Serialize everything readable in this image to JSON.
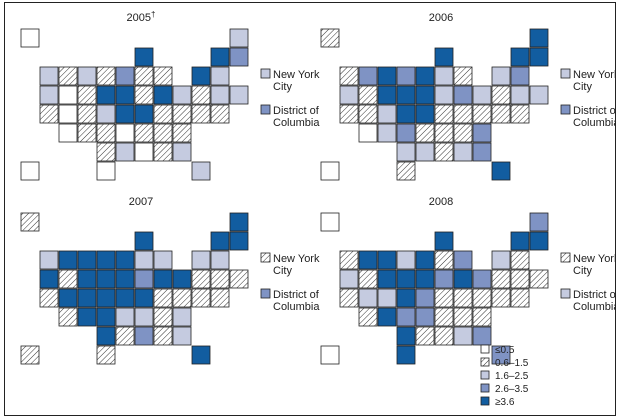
{
  "colors": {
    "c0": "#ffffff",
    "c1": "hatch",
    "c2": "#c5cbe0",
    "c3": "#7f93c4",
    "c4": "#125da0",
    "outline": "#222222"
  },
  "legend": {
    "items": [
      {
        "label": "≤0.5",
        "category": 0
      },
      {
        "label": "0.6–1.5",
        "category": 1
      },
      {
        "label": "1.6–2.5",
        "category": 2
      },
      {
        "label": "2.6–3.5",
        "category": 3
      },
      {
        "label": "≥3.6",
        "category": 4
      }
    ]
  },
  "panels": [
    {
      "title": "2005",
      "title_mark": "†",
      "nyc_label": "New York City",
      "nyc_line1": "New York",
      "nyc_line2": "City",
      "dc_line1": "District of",
      "dc_line2": "Columbia",
      "nyc": 2,
      "dc": 3,
      "states": {
        "WA": 2,
        "OR": 2,
        "CA": 1,
        "NV": 0,
        "ID": 1,
        "MT": 2,
        "WY": 1,
        "UT": 0,
        "AZ": 0,
        "CO": 1,
        "NM": 1,
        "ND": 1,
        "SD": 4,
        "NE": 2,
        "KS": 1,
        "OK": 1,
        "TX": 0,
        "MN": 3,
        "IA": 4,
        "MO": 4,
        "AR": 0,
        "LA": 2,
        "WI": 4,
        "IL": 1,
        "MI": 1,
        "IN": 1,
        "OH": 4,
        "KY": 4,
        "TN": 1,
        "MS": 0,
        "AL": 1,
        "GA": 2,
        "FL": 2,
        "SC": 1,
        "NC": 1,
        "VA": 1,
        "WV": 1,
        "PA": 2,
        "NY": 4,
        "VT": 4,
        "NH": 3,
        "ME": 2,
        "MA": 2,
        "CT": 2,
        "RI": 2,
        "NJ": 1,
        "DE": 1,
        "MD": 1,
        "AK": 0,
        "HI": 0
      }
    },
    {
      "title": "2006",
      "title_mark": "",
      "nyc_line1": "New York",
      "nyc_line2": "City",
      "dc_line1": "District of",
      "dc_line2": "Columbia",
      "nyc": 2,
      "dc": 3,
      "states": {
        "WA": 1,
        "OR": 2,
        "CA": 1,
        "NV": 1,
        "ID": 3,
        "MT": 4,
        "WY": 4,
        "UT": 1,
        "AZ": 0,
        "CO": 2,
        "NM": 2,
        "ND": 3,
        "SD": 4,
        "NE": 4,
        "KS": 3,
        "OK": 2,
        "TX": 1,
        "MN": 4,
        "IA": 4,
        "MO": 4,
        "AR": 1,
        "LA": 2,
        "WI": 4,
        "IL": 2,
        "MI": 1,
        "IN": 2,
        "OH": 3,
        "KY": 1,
        "TN": 1,
        "MS": 1,
        "AL": 2,
        "GA": 3,
        "FL": 4,
        "SC": 3,
        "NC": 1,
        "VA": 1,
        "WV": 1,
        "PA": 2,
        "NY": 2,
        "VT": 4,
        "NH": 4,
        "ME": 4,
        "MA": 3,
        "CT": 2,
        "RI": 2,
        "NJ": 1,
        "DE": 1,
        "MD": 1,
        "AK": 1,
        "HI": 0
      }
    },
    {
      "title": "2007",
      "title_mark": "",
      "nyc_line1": "New York",
      "nyc_line2": "City",
      "dc_line1": "District of",
      "dc_line2": "Columbia",
      "nyc": 1,
      "dc": 3,
      "states": {
        "WA": 2,
        "OR": 4,
        "CA": 1,
        "NV": 1,
        "ID": 4,
        "MT": 4,
        "WY": 4,
        "UT": 4,
        "AZ": 1,
        "CO": 4,
        "NM": 4,
        "ND": 4,
        "SD": 4,
        "NE": 4,
        "KS": 4,
        "OK": 4,
        "TX": 1,
        "MN": 4,
        "IA": 4,
        "MO": 4,
        "AR": 2,
        "LA": 1,
        "WI": 4,
        "IL": 2,
        "MI": 2,
        "IN": 3,
        "OH": 4,
        "KY": 4,
        "TN": 2,
        "MS": 3,
        "AL": 1,
        "GA": 2,
        "FL": 4,
        "SC": 2,
        "NC": 1,
        "VA": 1,
        "WV": 1,
        "PA": 4,
        "NY": 2,
        "VT": 4,
        "NH": 4,
        "ME": 4,
        "MA": 2,
        "CT": 1,
        "RI": 1,
        "NJ": 1,
        "DE": 1,
        "MD": 1,
        "AK": 1,
        "HI": 1
      }
    },
    {
      "title": "2008",
      "title_mark": "",
      "nyc_line1": "New York",
      "nyc_line2": "City",
      "dc_line1": "District of",
      "dc_line2": "Columbia",
      "nyc": 1,
      "dc": 2,
      "states": {
        "WA": 1,
        "OR": 2,
        "CA": 1,
        "NV": 1,
        "ID": 4,
        "MT": 4,
        "WY": 4,
        "UT": 2,
        "AZ": 1,
        "CO": 2,
        "NM": 4,
        "ND": 2,
        "SD": 4,
        "NE": 4,
        "KS": 3,
        "OK": 4,
        "TX": 4,
        "MN": 4,
        "IA": 4,
        "MO": 3,
        "AR": 3,
        "LA": 1,
        "WI": 4,
        "IL": 1,
        "MI": 3,
        "IN": 3,
        "OH": 4,
        "KY": 1,
        "TN": 1,
        "MS": 1,
        "AL": 2,
        "GA": 3,
        "FL": 3,
        "SC": 1,
        "NC": 1,
        "VA": 1,
        "WV": 1,
        "PA": 3,
        "NY": 2,
        "VT": 4,
        "NH": 4,
        "ME": 3,
        "MA": 1,
        "CT": 1,
        "RI": 1,
        "NJ": 1,
        "DE": 1,
        "MD": 1,
        "AK": 0,
        "HI": 0
      }
    }
  ]
}
